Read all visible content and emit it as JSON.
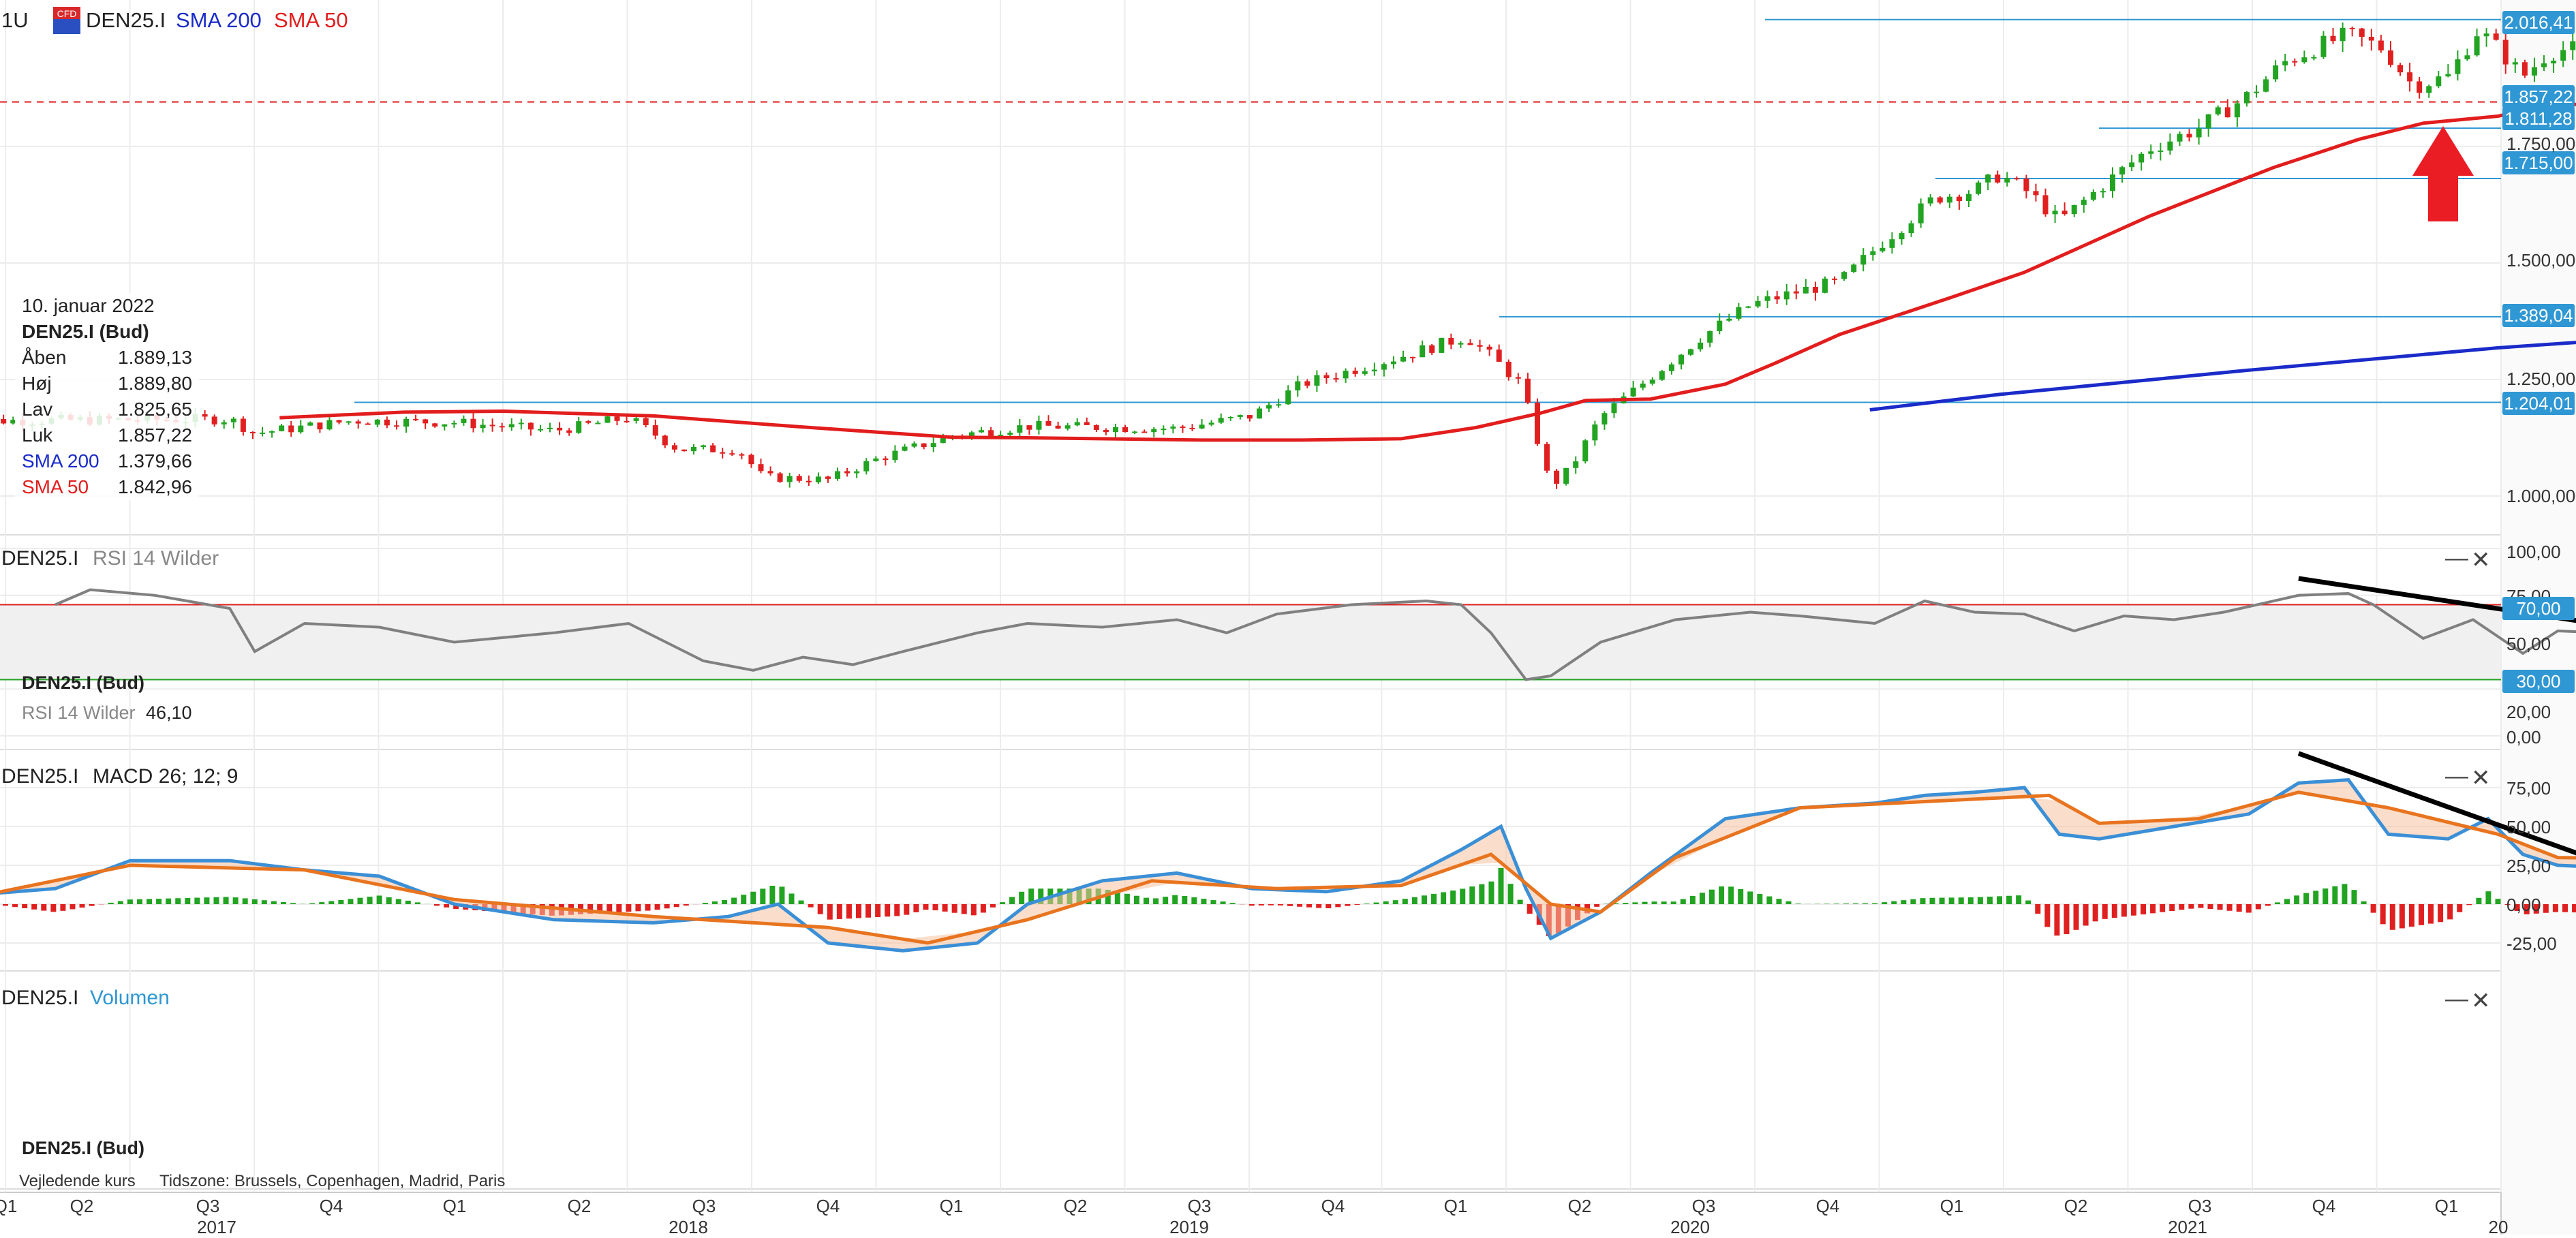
{
  "header": {
    "timeframe": "1U",
    "cfd_badge": "CFD",
    "symbol": "DEN25.I",
    "sma200_label": "SMA 200",
    "sma50_label": "SMA 50"
  },
  "ohlc_panel": {
    "date": "10. januar 2022",
    "instrument": "DEN25.I (Bud)",
    "rows": [
      {
        "label": "Åben",
        "value": "1.889,13"
      },
      {
        "label": "Høj",
        "value": "1.889,80"
      },
      {
        "label": "Lav",
        "value": "1.825,65"
      },
      {
        "label": "Luk",
        "value": "1.857,22"
      },
      {
        "label": "SMA 200",
        "value": "1.379,66"
      },
      {
        "label": "SMA 50",
        "value": "1.842,96"
      }
    ]
  },
  "rsi_panel": {
    "symbol": "DEN25.I",
    "indicator": "RSI 14 Wilder",
    "legend_instrument": "DEN25.I (Bud)",
    "legend_indicator": "RSI 14 Wilder",
    "legend_value": "46,10"
  },
  "macd_panel": {
    "symbol": "DEN25.I",
    "indicator": "MACD 26; 12; 9"
  },
  "volume_panel": {
    "symbol": "DEN25.I",
    "indicator": "Volumen",
    "legend_instrument": "DEN25.I (Bud)"
  },
  "footer": {
    "price_type": "Vejledende kurs",
    "timezone": "Tidszone: Brussels, Copenhagen, Madrid, Paris"
  },
  "controls": {
    "minimize": "—",
    "close": "✕"
  },
  "colors": {
    "up": "#22a422",
    "down": "#e02020",
    "sma50": "#e21d1d",
    "sma200": "#1a2bc9",
    "level": "#2f97d3",
    "macd": "#3b8fd6",
    "signal": "#e8741f",
    "rsi": "#808080"
  },
  "chart_data": [
    {
      "type": "candlestick",
      "title": "DEN25.I",
      "interval": "1U",
      "y_ticks": [
        "1.000,00",
        "1.250,00",
        "1.500,00",
        "1.750,00"
      ],
      "x_quarters": [
        "Q1",
        "Q2",
        "Q3",
        "Q4",
        "Q1",
        "Q2",
        "Q3",
        "Q4",
        "Q1",
        "Q2",
        "Q3",
        "Q4",
        "Q1",
        "Q2",
        "Q3",
        "Q4",
        "Q1",
        "Q2",
        "Q3",
        "Q4",
        "Q1"
      ],
      "x_years": [
        "2017",
        "2018",
        "2019",
        "2020",
        "2021",
        "20"
      ],
      "series": [
        {
          "name": "SMA 200",
          "points": [
            [
              2019.74,
              1185
            ],
            [
              2020.0,
              1218
            ],
            [
              2020.5,
              1270
            ],
            [
              2021.0,
              1318
            ],
            [
              2021.5,
              1355
            ],
            [
              2022.03,
              1379.66
            ]
          ]
        },
        {
          "name": "SMA 50",
          "points": [
            [
              2016.55,
              1168
            ],
            [
              2016.8,
              1180
            ],
            [
              2017.0,
              1182
            ],
            [
              2017.3,
              1172
            ],
            [
              2017.6,
              1148
            ],
            [
              2017.9,
              1126
            ],
            [
              2018.05,
              1125
            ],
            [
              2018.4,
              1120
            ],
            [
              2018.6,
              1120
            ],
            [
              2018.8,
              1123
            ],
            [
              2018.95,
              1147
            ],
            [
              2019.08,
              1178
            ],
            [
              2019.17,
              1205
            ],
            [
              2019.3,
              1208
            ],
            [
              2019.45,
              1240
            ],
            [
              2019.55,
              1285
            ],
            [
              2019.68,
              1347
            ],
            [
              2019.9,
              1425
            ],
            [
              2020.05,
              1480
            ],
            [
              2020.3,
              1600
            ],
            [
              2020.55,
              1705
            ],
            [
              2020.72,
              1765
            ],
            [
              2020.85,
              1800
            ],
            [
              2021.0,
              1815
            ],
            [
              2021.1,
              1840
            ],
            [
              2022.03,
              1842.96
            ]
          ]
        }
      ],
      "candles_anchor_closes": [
        [
          2015.9,
          1160
        ],
        [
          2016.0,
          1162
        ],
        [
          2016.45,
          1165
        ],
        [
          2016.5,
          1135
        ],
        [
          2016.7,
          1162
        ],
        [
          2016.9,
          1158
        ],
        [
          2017.1,
          1140
        ],
        [
          2017.25,
          1168
        ],
        [
          2017.35,
          1100
        ],
        [
          2017.47,
          1100
        ],
        [
          2017.52,
          1040
        ],
        [
          2017.65,
          1035
        ],
        [
          2017.75,
          1080
        ],
        [
          2017.9,
          1130
        ],
        [
          2018.05,
          1150
        ],
        [
          2018.35,
          1145
        ],
        [
          2018.5,
          1172
        ],
        [
          2018.6,
          1240
        ],
        [
          2018.8,
          1300
        ],
        [
          2018.93,
          1342
        ],
        [
          2018.98,
          1300
        ],
        [
          2019.04,
          1240
        ],
        [
          2019.1,
          1020
        ],
        [
          2019.14,
          1060
        ],
        [
          2019.2,
          1170
        ],
        [
          2019.3,
          1255
        ],
        [
          2019.4,
          1340
        ],
        [
          2019.5,
          1410
        ],
        [
          2019.6,
          1440
        ],
        [
          2019.68,
          1460
        ],
        [
          2019.76,
          1540
        ],
        [
          2019.87,
          1640
        ],
        [
          2019.95,
          1655
        ],
        [
          2020.0,
          1690
        ],
        [
          2020.06,
          1650
        ],
        [
          2020.12,
          1590
        ],
        [
          2020.2,
          1660
        ],
        [
          2020.3,
          1745
        ],
        [
          2020.4,
          1790
        ],
        [
          2020.5,
          1860
        ],
        [
          2020.57,
          1930
        ],
        [
          2020.64,
          1965
        ],
        [
          2020.7,
          1990
        ],
        [
          2020.77,
          1960
        ],
        [
          2020.83,
          1880
        ],
        [
          2020.9,
          1900
        ],
        [
          2020.96,
          2000
        ],
        [
          2021.0,
          1960
        ],
        [
          2021.05,
          1900
        ],
        [
          2021.1,
          1950
        ],
        [
          2021.14,
          1960
        ],
        [
          2022.03,
          1857.22
        ]
      ],
      "levels": [
        2016.41,
        1857.22,
        1811.28,
        1715.0,
        1389.04,
        1204.01
      ],
      "level_labels": [
        "2.016,41",
        "1.857,22",
        "1.811,28",
        "1.715,00",
        "1.389,04",
        "1.204,01"
      ],
      "annotations": [
        "red up arrow near last candle"
      ]
    },
    {
      "type": "line",
      "title": "RSI 14 Wilder",
      "y_ticks": [
        "100,00",
        "75,00",
        "50,00",
        "20,00",
        "0,00"
      ],
      "levels": [
        70,
        30
      ],
      "level_labels": [
        "70,00",
        "30,00"
      ],
      "series": [
        {
          "name": "RSI 14 Wilder",
          "points": [
            [
              2016.1,
              70
            ],
            [
              2016.17,
              78
            ],
            [
              2016.3,
              75
            ],
            [
              2016.45,
              68
            ],
            [
              2016.5,
              45
            ],
            [
              2016.6,
              60
            ],
            [
              2016.75,
              58
            ],
            [
              2016.9,
              50
            ],
            [
              2017.1,
              55
            ],
            [
              2017.25,
              60
            ],
            [
              2017.4,
              40
            ],
            [
              2017.5,
              35
            ],
            [
              2017.6,
              42
            ],
            [
              2017.7,
              38
            ],
            [
              2017.8,
              45
            ],
            [
              2017.95,
              55
            ],
            [
              2018.05,
              60
            ],
            [
              2018.2,
              58
            ],
            [
              2018.35,
              62
            ],
            [
              2018.45,
              55
            ],
            [
              2018.55,
              65
            ],
            [
              2018.7,
              70
            ],
            [
              2018.85,
              72
            ],
            [
              2018.92,
              70
            ],
            [
              2018.98,
              55
            ],
            [
              2019.05,
              30
            ],
            [
              2019.1,
              32
            ],
            [
              2019.2,
              50
            ],
            [
              2019.35,
              62
            ],
            [
              2019.5,
              66
            ],
            [
              2019.6,
              64
            ],
            [
              2019.75,
              60
            ],
            [
              2019.85,
              72
            ],
            [
              2019.95,
              66
            ],
            [
              2020.05,
              65
            ],
            [
              2020.15,
              56
            ],
            [
              2020.25,
              64
            ],
            [
              2020.35,
              62
            ],
            [
              2020.45,
              66
            ],
            [
              2020.6,
              75
            ],
            [
              2020.7,
              76
            ],
            [
              2020.75,
              70
            ],
            [
              2020.85,
              52
            ],
            [
              2020.95,
              62
            ],
            [
              2021.05,
              44
            ],
            [
              2021.12,
              56
            ],
            [
              2022.03,
              46.1
            ]
          ]
        }
      ],
      "trendline": [
        [
          2020.6,
          84
        ],
        [
          2021.27,
          57
        ]
      ],
      "legend_value": 46.1
    },
    {
      "type": "line",
      "title": "MACD 26; 12; 9",
      "y_ticks": [
        "75,00",
        "50,00",
        "25,00",
        "0,00",
        "-25,00"
      ],
      "series": [
        {
          "name": "MACD",
          "points": [
            [
              2015.9,
              5
            ],
            [
              2016.1,
              10
            ],
            [
              2016.25,
              28
            ],
            [
              2016.45,
              28
            ],
            [
              2016.6,
              22
            ],
            [
              2016.75,
              18
            ],
            [
              2016.9,
              0
            ],
            [
              2017.1,
              -10
            ],
            [
              2017.3,
              -12
            ],
            [
              2017.45,
              -8
            ],
            [
              2017.55,
              0
            ],
            [
              2017.65,
              -25
            ],
            [
              2017.8,
              -30
            ],
            [
              2017.95,
              -25
            ],
            [
              2018.05,
              0
            ],
            [
              2018.2,
              15
            ],
            [
              2018.35,
              20
            ],
            [
              2018.5,
              10
            ],
            [
              2018.65,
              8
            ],
            [
              2018.8,
              15
            ],
            [
              2018.92,
              35
            ],
            [
              2019.0,
              50
            ],
            [
              2019.05,
              10
            ],
            [
              2019.1,
              -22
            ],
            [
              2019.2,
              -5
            ],
            [
              2019.3,
              20
            ],
            [
              2019.45,
              55
            ],
            [
              2019.6,
              62
            ],
            [
              2019.75,
              65
            ],
            [
              2019.85,
              70
            ],
            [
              2019.95,
              72
            ],
            [
              2020.05,
              75
            ],
            [
              2020.12,
              45
            ],
            [
              2020.2,
              42
            ],
            [
              2020.35,
              50
            ],
            [
              2020.5,
              58
            ],
            [
              2020.6,
              78
            ],
            [
              2020.7,
              80
            ],
            [
              2020.78,
              45
            ],
            [
              2020.9,
              42
            ],
            [
              2020.98,
              55
            ],
            [
              2021.05,
              32
            ],
            [
              2021.12,
              25
            ],
            [
              2022.03,
              12
            ]
          ]
        },
        {
          "name": "Signal",
          "points": [
            [
              2015.9,
              2
            ],
            [
              2016.25,
              25
            ],
            [
              2016.6,
              22
            ],
            [
              2016.9,
              3
            ],
            [
              2017.3,
              -8
            ],
            [
              2017.65,
              -15
            ],
            [
              2017.85,
              -25
            ],
            [
              2018.05,
              -10
            ],
            [
              2018.3,
              15
            ],
            [
              2018.55,
              10
            ],
            [
              2018.8,
              12
            ],
            [
              2018.98,
              32
            ],
            [
              2019.1,
              0
            ],
            [
              2019.2,
              -5
            ],
            [
              2019.35,
              30
            ],
            [
              2019.6,
              62
            ],
            [
              2019.85,
              66
            ],
            [
              2020.1,
              70
            ],
            [
              2020.2,
              52
            ],
            [
              2020.4,
              55
            ],
            [
              2020.6,
              72
            ],
            [
              2020.78,
              62
            ],
            [
              2021.0,
              45
            ],
            [
              2021.12,
              30
            ],
            [
              2022.03,
              25
            ]
          ]
        }
      ],
      "trendline": [
        [
          2020.6,
          97
        ],
        [
          2021.27,
          20
        ]
      ]
    },
    {
      "type": "bar",
      "title": "Volumen",
      "series": []
    }
  ]
}
